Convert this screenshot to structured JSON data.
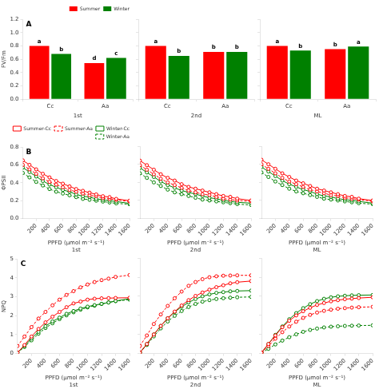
{
  "chart_data": [
    {
      "type": "bar",
      "title": "A",
      "categories": [
        "Cc",
        "Aa"
      ],
      "series": [
        {
          "name": "Summer",
          "color": "#FF0000",
          "values": [
            0.8,
            0.54
          ],
          "annotations": [
            "a",
            "d"
          ]
        },
        {
          "name": "Winter",
          "color": "#008000",
          "values": [
            0.68,
            0.62
          ],
          "annotations": [
            "b",
            "c"
          ]
        }
      ],
      "xlabel": "1st",
      "ylabel": "FV/Fm",
      "ylim": [
        0,
        1.2
      ],
      "yticks": [
        {
          "value": 0.0,
          "label": "0.0"
        },
        0.2,
        0.4,
        0.6,
        0.8,
        {
          "value": 1.0,
          "label": "1.0"
        },
        1.2
      ],
      "grid": false,
      "legend": "upper right"
    },
    {
      "type": "bar",
      "categories": [
        "Cc",
        "Aa"
      ],
      "series": [
        {
          "color": "#FF0000",
          "values": [
            0.8,
            0.71
          ],
          "annotations": [
            "a",
            "b"
          ]
        },
        {
          "color": "#008000",
          "values": [
            0.65,
            0.71
          ],
          "annotations": [
            "b",
            "b"
          ]
        }
      ],
      "xlabel": "2nd",
      "ylim": [
        0,
        1.2
      ],
      "yticks": [
        {
          "value": 0.0,
          "label": "0.0"
        },
        0.2,
        0.4,
        0.6,
        0.8,
        {
          "value": 1.0,
          "label": "1.0"
        },
        1.2
      ],
      "grid": false,
      "tick_labels": "x"
    },
    {
      "type": "bar",
      "categories": [
        "Cc",
        "Aa"
      ],
      "series": [
        {
          "color": "#FF0000",
          "values": [
            0.8,
            0.75
          ],
          "annotations": [
            "a",
            "b"
          ]
        },
        {
          "color": "#008000",
          "values": [
            0.73,
            0.79
          ],
          "annotations": [
            "b",
            "a"
          ]
        }
      ],
      "xlabel": "ML",
      "ylim": [
        0,
        1.2
      ],
      "yticks": [
        {
          "value": 0.0,
          "label": "0.0"
        },
        0.2,
        0.4,
        0.6,
        0.8,
        {
          "value": 1.0,
          "label": "1.0"
        },
        1.2
      ],
      "grid": false,
      "tick_labels": "x"
    },
    {
      "type": "line",
      "title": "B",
      "x": [
        0,
        100,
        200,
        300,
        400,
        500,
        600,
        700,
        800,
        900,
        1000,
        1100,
        1200,
        1300,
        1400,
        1600
      ],
      "series": [
        {
          "name": "Summer-Cc",
          "color": "#FF0000",
          "marker": "o",
          "line_style": "solid",
          "values": [
            0.65,
            0.6,
            0.55,
            0.5,
            0.46,
            0.42,
            0.39,
            0.36,
            0.33,
            0.31,
            0.29,
            0.27,
            0.25,
            0.24,
            0.22,
            0.2
          ]
        },
        {
          "name": "Summer-Aa",
          "color": "#FF0000",
          "marker": "o",
          "line_style": "dashed",
          "values": [
            0.6,
            0.55,
            0.5,
            0.45,
            0.41,
            0.38,
            0.35,
            0.32,
            0.3,
            0.28,
            0.26,
            0.25,
            0.23,
            0.22,
            0.21,
            0.19
          ]
        },
        {
          "name": "Winter-Cc",
          "color": "#008000",
          "marker": "o",
          "line_style": "solid",
          "values": [
            0.57,
            0.52,
            0.47,
            0.42,
            0.38,
            0.35,
            0.32,
            0.3,
            0.27,
            0.25,
            0.24,
            0.22,
            0.21,
            0.2,
            0.19,
            0.17
          ]
        },
        {
          "name": "Winter-Aa",
          "color": "#008000",
          "marker": "o",
          "line_style": "dashed",
          "values": [
            0.51,
            0.46,
            0.41,
            0.37,
            0.33,
            0.3,
            0.28,
            0.26,
            0.24,
            0.22,
            0.21,
            0.2,
            0.19,
            0.18,
            0.17,
            0.16
          ]
        }
      ],
      "xlabel": "PPFD (μmol m⁻² s⁻¹)",
      "annotations": [
        "1st"
      ],
      "ylabel": "ΦPSII",
      "xlim": [
        0,
        1600
      ],
      "xticks": [
        200,
        400,
        600,
        800,
        1000,
        1200,
        1400,
        1600
      ],
      "ylim": [
        0.0,
        0.8
      ],
      "yticks": [
        {
          "value": 0.0,
          "label": "0.0"
        },
        0.2,
        0.4,
        0.6,
        0.8
      ],
      "grid": false,
      "legend": "upper right"
    },
    {
      "type": "line",
      "x": [
        0,
        100,
        200,
        300,
        400,
        500,
        600,
        700,
        800,
        900,
        1000,
        1100,
        1200,
        1300,
        1400,
        1600
      ],
      "series": [
        {
          "color": "#FF0000",
          "marker": "o",
          "line_style": "solid",
          "values": [
            0.64,
            0.59,
            0.54,
            0.49,
            0.45,
            0.42,
            0.38,
            0.35,
            0.33,
            0.31,
            0.29,
            0.27,
            0.25,
            0.24,
            0.22,
            0.2
          ]
        },
        {
          "color": "#FF0000",
          "marker": "o",
          "line_style": "dashed",
          "values": [
            0.59,
            0.54,
            0.49,
            0.44,
            0.4,
            0.37,
            0.34,
            0.31,
            0.29,
            0.27,
            0.26,
            0.24,
            0.22,
            0.21,
            0.2,
            0.19
          ]
        },
        {
          "color": "#008000",
          "marker": "o",
          "line_style": "solid",
          "values": [
            0.56,
            0.51,
            0.46,
            0.41,
            0.37,
            0.34,
            0.31,
            0.29,
            0.27,
            0.25,
            0.23,
            0.22,
            0.2,
            0.19,
            0.18,
            0.17
          ]
        },
        {
          "color": "#008000",
          "marker": "o",
          "line_style": "dashed",
          "values": [
            0.5,
            0.45,
            0.4,
            0.36,
            0.32,
            0.29,
            0.27,
            0.25,
            0.23,
            0.21,
            0.2,
            0.19,
            0.18,
            0.17,
            0.16,
            0.15
          ]
        }
      ],
      "xlabel": "PPFD (μmol m⁻² s⁻¹)",
      "annotations": [
        "2nd"
      ],
      "xlim": [
        0,
        1600
      ],
      "xticks": [
        200,
        400,
        600,
        800,
        1000,
        1200,
        1400,
        1600
      ],
      "ylim": [
        0.0,
        0.8
      ],
      "yticks": [
        {
          "value": 0.0,
          "label": "0.0"
        },
        0.2,
        0.4,
        0.6,
        0.8
      ],
      "grid": false,
      "tick_labels": "x"
    },
    {
      "type": "line",
      "x": [
        0,
        100,
        200,
        300,
        400,
        500,
        600,
        700,
        800,
        900,
        1000,
        1100,
        1200,
        1300,
        1400,
        1600
      ],
      "series": [
        {
          "color": "#FF0000",
          "marker": "o",
          "line_style": "solid",
          "values": [
            0.65,
            0.6,
            0.55,
            0.5,
            0.46,
            0.42,
            0.39,
            0.36,
            0.33,
            0.31,
            0.29,
            0.27,
            0.25,
            0.24,
            0.22,
            0.2
          ]
        },
        {
          "color": "#FF0000",
          "marker": "o",
          "line_style": "dashed",
          "values": [
            0.6,
            0.55,
            0.5,
            0.45,
            0.41,
            0.38,
            0.35,
            0.32,
            0.3,
            0.28,
            0.26,
            0.25,
            0.23,
            0.22,
            0.21,
            0.19
          ]
        },
        {
          "color": "#008000",
          "marker": "o",
          "line_style": "solid",
          "values": [
            0.57,
            0.52,
            0.47,
            0.42,
            0.38,
            0.35,
            0.32,
            0.3,
            0.27,
            0.25,
            0.24,
            0.22,
            0.21,
            0.2,
            0.19,
            0.17
          ]
        },
        {
          "color": "#008000",
          "marker": "o",
          "line_style": "dashed",
          "values": [
            0.51,
            0.46,
            0.41,
            0.37,
            0.33,
            0.3,
            0.28,
            0.26,
            0.24,
            0.22,
            0.21,
            0.2,
            0.19,
            0.18,
            0.17,
            0.16
          ]
        }
      ],
      "xlabel": "PPFD (μmol m⁻² s⁻¹)",
      "annotations": [
        "ML"
      ],
      "xlim": [
        0,
        1600
      ],
      "xticks": [
        200,
        400,
        600,
        800,
        1000,
        1200,
        1400,
        1600
      ],
      "ylim": [
        0.0,
        0.8
      ],
      "yticks": [
        {
          "value": 0.0,
          "label": "0.0"
        },
        0.2,
        0.4,
        0.6,
        0.8
      ],
      "grid": false,
      "tick_labels": "x"
    },
    {
      "type": "line",
      "title": "C",
      "x": [
        0,
        100,
        200,
        300,
        400,
        500,
        600,
        700,
        800,
        900,
        1000,
        1100,
        1200,
        1300,
        1400,
        1600
      ],
      "series": [
        {
          "color": "#FF0000",
          "marker": "o",
          "line_style": "solid",
          "values": [
            0.05,
            0.45,
            0.9,
            1.3,
            1.65,
            1.95,
            2.2,
            2.45,
            2.65,
            2.75,
            2.85,
            2.9,
            2.92,
            2.93,
            2.94,
            2.95
          ]
        },
        {
          "color": "#FF0000",
          "marker": "o",
          "line_style": "dashed",
          "values": [
            0.4,
            0.9,
            1.4,
            1.85,
            2.2,
            2.55,
            2.85,
            3.1,
            3.3,
            3.5,
            3.65,
            3.78,
            3.88,
            3.96,
            4.05,
            4.15
          ]
        },
        {
          "color": "#008000",
          "marker": "o",
          "line_style": "solid",
          "values": [
            0.05,
            0.4,
            0.8,
            1.15,
            1.45,
            1.7,
            1.9,
            2.1,
            2.25,
            2.38,
            2.48,
            2.56,
            2.63,
            2.7,
            2.78,
            2.9
          ]
        },
        {
          "color": "#008000",
          "marker": "o",
          "line_style": "dashed",
          "values": [
            0.05,
            0.35,
            0.7,
            1.05,
            1.35,
            1.6,
            1.82,
            2.02,
            2.18,
            2.32,
            2.44,
            2.53,
            2.62,
            2.7,
            2.77,
            2.85
          ]
        }
      ],
      "xlabel": "PPFD (μmol m⁻² s⁻¹)",
      "annotations": [
        "1st"
      ],
      "ylabel": "NPQ",
      "xlim": [
        0,
        1600
      ],
      "xticks": [
        200,
        400,
        600,
        800,
        1000,
        1200,
        1400,
        1600
      ],
      "ylim": [
        0,
        5
      ],
      "yticks": [
        0,
        1,
        2,
        3,
        4,
        5
      ],
      "grid": false
    },
    {
      "type": "line",
      "x": [
        0,
        100,
        200,
        300,
        400,
        500,
        600,
        700,
        800,
        900,
        1000,
        1100,
        1200,
        1300,
        1400,
        1600
      ],
      "series": [
        {
          "color": "#FF0000",
          "marker": "o",
          "line_style": "solid",
          "values": [
            0.05,
            0.5,
            1.0,
            1.45,
            1.85,
            2.2,
            2.52,
            2.8,
            3.02,
            3.2,
            3.35,
            3.48,
            3.58,
            3.68,
            3.74,
            3.8
          ]
        },
        {
          "color": "#FF0000",
          "marker": "o",
          "line_style": "dashed",
          "values": [
            0.4,
            0.95,
            1.55,
            2.05,
            2.5,
            2.9,
            3.25,
            3.55,
            3.75,
            3.9,
            4.0,
            4.05,
            4.08,
            4.09,
            4.1,
            4.1
          ]
        },
        {
          "color": "#008000",
          "marker": "o",
          "line_style": "solid",
          "values": [
            0.05,
            0.5,
            1.0,
            1.45,
            1.85,
            2.18,
            2.45,
            2.68,
            2.86,
            3.0,
            3.1,
            3.18,
            3.22,
            3.26,
            3.28,
            3.3
          ]
        },
        {
          "color": "#008000",
          "marker": "o",
          "line_style": "dashed",
          "values": [
            0.05,
            0.45,
            0.9,
            1.32,
            1.68,
            1.98,
            2.23,
            2.44,
            2.6,
            2.72,
            2.8,
            2.86,
            2.9,
            2.93,
            2.95,
            2.97
          ]
        }
      ],
      "xlabel": "PPFD (μmol m⁻² s⁻¹)",
      "annotations": [
        "2nd"
      ],
      "xlim": [
        0,
        1600
      ],
      "xticks": [
        200,
        400,
        600,
        800,
        1000,
        1200,
        1400,
        1600
      ],
      "ylim": [
        0,
        5
      ],
      "yticks": [
        0,
        1,
        2,
        3,
        4,
        5
      ],
      "grid": false,
      "tick_labels": "x"
    },
    {
      "type": "line",
      "x": [
        0,
        100,
        200,
        300,
        400,
        500,
        600,
        700,
        800,
        900,
        1000,
        1100,
        1200,
        1300,
        1400,
        1600
      ],
      "series": [
        {
          "color": "#FF0000",
          "marker": "o",
          "line_style": "solid",
          "values": [
            0.05,
            0.5,
            0.95,
            1.38,
            1.72,
            2.0,
            2.22,
            2.4,
            2.55,
            2.65,
            2.74,
            2.8,
            2.85,
            2.88,
            2.91,
            2.95
          ]
        },
        {
          "color": "#FF0000",
          "marker": "o",
          "line_style": "dashed",
          "values": [
            0.05,
            0.4,
            0.78,
            1.12,
            1.42,
            1.67,
            1.87,
            2.03,
            2.15,
            2.24,
            2.3,
            2.35,
            2.38,
            2.41,
            2.43,
            2.45
          ]
        },
        {
          "color": "#008000",
          "marker": "o",
          "line_style": "solid",
          "values": [
            0.05,
            0.5,
            0.98,
            1.42,
            1.8,
            2.12,
            2.38,
            2.59,
            2.75,
            2.87,
            2.95,
            3.0,
            3.03,
            3.05,
            3.06,
            3.07
          ]
        },
        {
          "color": "#008000",
          "marker": "o",
          "line_style": "dashed",
          "values": [
            0.05,
            0.25,
            0.48,
            0.68,
            0.86,
            1.01,
            1.14,
            1.24,
            1.31,
            1.37,
            1.41,
            1.43,
            1.45,
            1.46,
            1.47,
            1.48
          ]
        }
      ],
      "xlabel": "PPFD (μmol m⁻² s⁻¹)",
      "annotations": [
        "ML"
      ],
      "xlim": [
        0,
        1600
      ],
      "xticks": [
        200,
        400,
        600,
        800,
        1000,
        1200,
        1400,
        1600
      ],
      "ylim": [
        0,
        5
      ],
      "yticks": [
        0,
        1,
        2,
        3,
        4,
        5
      ],
      "grid": false,
      "tick_labels": "x"
    }
  ]
}
